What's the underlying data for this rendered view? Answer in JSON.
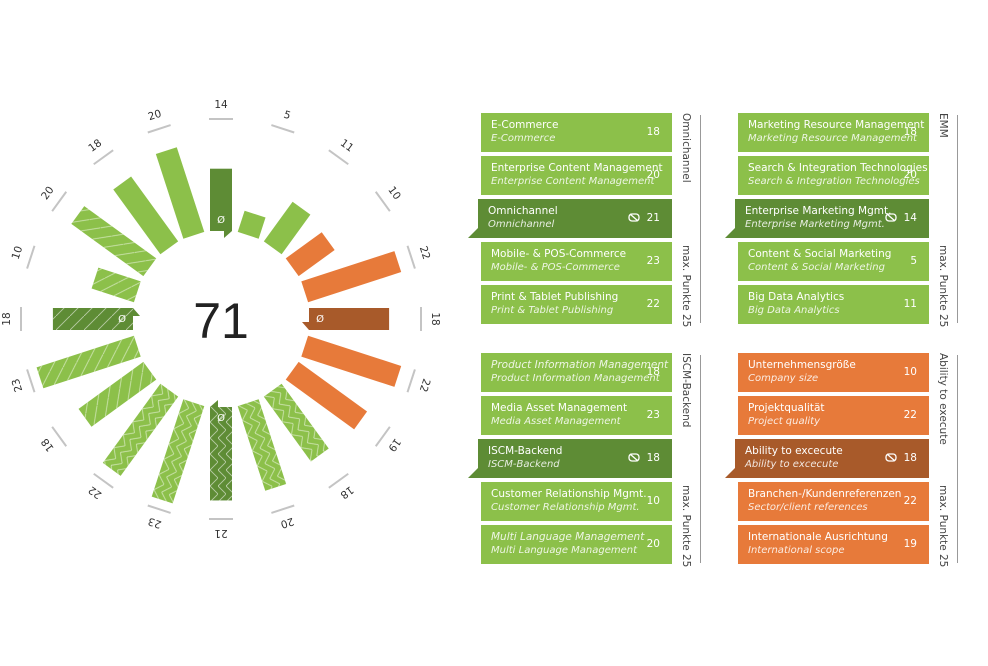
{
  "colors": {
    "green": "#8cc04a",
    "green_dark": "#5e8c35",
    "orange": "#e77a3a",
    "orange_dark": "#a85a2a",
    "tick": "#c4c4c4",
    "label": "#333333"
  },
  "chart_data": {
    "type": "radial_bar",
    "title": "",
    "center_value": "71",
    "max_value": 25,
    "average_marker": "Ø",
    "segments": [
      {
        "angle": 0,
        "value": 14,
        "group": "EMM",
        "label": "Enterprise Marketing Mgmt.",
        "avg": true,
        "pattern": "solid"
      },
      {
        "angle": 18,
        "value": 5,
        "group": "EMM",
        "label": "Content & Social Marketing",
        "pattern": "solid"
      },
      {
        "angle": 36,
        "value": 11,
        "group": "EMM",
        "label": "Big Data Analytics",
        "pattern": "solid"
      },
      {
        "angle": 54,
        "value": 10,
        "group": "Ability to execute",
        "label": "Company size",
        "pattern": "solid"
      },
      {
        "angle": 72,
        "value": 22,
        "group": "Ability to execute",
        "label": "Project quality",
        "pattern": "solid"
      },
      {
        "angle": 90,
        "value": 18,
        "group": "Ability to execute",
        "label": "Ability to excecute",
        "avg": true,
        "pattern": "solid"
      },
      {
        "angle": 108,
        "value": 22,
        "group": "Ability to execute",
        "label": "Sector/client references",
        "pattern": "solid"
      },
      {
        "angle": 126,
        "value": 19,
        "group": "Ability to execute",
        "label": "International scope",
        "pattern": "solid"
      },
      {
        "angle": 144,
        "value": 18,
        "group": "Omnichannel",
        "label": "E-Commerce",
        "pattern": "cross"
      },
      {
        "angle": 162,
        "value": 20,
        "group": "Omnichannel",
        "label": "Enterprise Content Management",
        "pattern": "cross"
      },
      {
        "angle": 180,
        "value": 21,
        "group": "Omnichannel",
        "label": "Omnichannel",
        "avg": true,
        "pattern": "cross"
      },
      {
        "angle": 198,
        "value": 23,
        "group": "Omnichannel",
        "label": "Mobile- & POS-Commerce",
        "pattern": "cross"
      },
      {
        "angle": 216,
        "value": 22,
        "group": "Omnichannel",
        "label": "Print & Tablet Publishing",
        "pattern": "cross"
      },
      {
        "angle": 234,
        "value": 18,
        "group": "ISCM-Backend",
        "label": "Product Information Management",
        "pattern": "diag"
      },
      {
        "angle": 252,
        "value": 23,
        "group": "ISCM-Backend",
        "label": "Media Asset Management",
        "pattern": "diag"
      },
      {
        "angle": 270,
        "value": 18,
        "group": "ISCM-Backend",
        "label": "ISCM-Backend",
        "avg": true,
        "pattern": "diag"
      },
      {
        "angle": 288,
        "value": 10,
        "group": "ISCM-Backend",
        "label": "Customer Relationship Mgmt.",
        "pattern": "diag"
      },
      {
        "angle": 306,
        "value": 20,
        "group": "ISCM-Backend",
        "label": "Multi Language Management",
        "pattern": "diag"
      },
      {
        "angle": 324,
        "value": 18,
        "group": "EMM",
        "label": "Marketing Resource Management",
        "pattern": "solid"
      },
      {
        "angle": 342,
        "value": 20,
        "group": "EMM",
        "label": "Search & Integration Technologies",
        "pattern": "solid"
      }
    ],
    "legend_position": "right",
    "grid": false
  },
  "panels": [
    {
      "id": "omnichannel",
      "group_label": "Omnichannel",
      "max_label": "max. Punkte 25",
      "theme": "green",
      "items": [
        {
          "title": "E-Commerce",
          "subtitle": "E-Commerce",
          "value": "18"
        },
        {
          "title": "Enterprise Content Management",
          "subtitle": "Enterprise Content Management",
          "value": "20"
        },
        {
          "title": "Omnichannel",
          "subtitle": "Omnichannel",
          "value": "21",
          "avg": true
        },
        {
          "title": "Mobile- & POS-Commerce",
          "subtitle": "Mobile- & POS-Commerce",
          "value": "23"
        },
        {
          "title": "Print & Tablet Publishing",
          "subtitle": "Print & Tablet Publishing",
          "value": "22"
        }
      ]
    },
    {
      "id": "emm",
      "group_label": "EMM",
      "max_label": "max. Punkte 25",
      "theme": "green",
      "items": [
        {
          "title": "Marketing Resource Management",
          "subtitle": "Marketing Resource Management",
          "value": "18"
        },
        {
          "title": "Search & Integration Technologies",
          "subtitle": "Search & Integration Technologies",
          "value": "20"
        },
        {
          "title": "Enterprise Marketing Mgmt.",
          "subtitle": "Enterprise Marketing Mgmt.",
          "value": "14",
          "avg": true
        },
        {
          "title": "Content & Social Marketing",
          "subtitle": "Content & Social Marketing",
          "value": "5"
        },
        {
          "title": "Big Data Analytics",
          "subtitle": "Big Data Analytics",
          "value": "11"
        }
      ]
    },
    {
      "id": "iscm",
      "group_label": "ISCM-Backend",
      "max_label": "max. Punkte 25",
      "theme": "green",
      "items": [
        {
          "title": "Product Information Management",
          "subtitle": "Product Information Management",
          "value": "18",
          "italic_title": true
        },
        {
          "title": "Media Asset Management",
          "subtitle": "Media Asset Management",
          "value": "23"
        },
        {
          "title": "ISCM-Backend",
          "subtitle": "ISCM-Backend",
          "value": "18",
          "avg": true
        },
        {
          "title": "Customer Relationship Mgmt.",
          "subtitle": "Customer Relationship Mgmt.",
          "value": "10"
        },
        {
          "title": "Multi Language Management",
          "subtitle": "Multi Language Management",
          "value": "20",
          "italic_title": true
        }
      ]
    },
    {
      "id": "ability",
      "group_label": "Ability to execute",
      "max_label": "max. Punkte 25",
      "theme": "orange",
      "items": [
        {
          "title": "Unternehmensgröße",
          "subtitle": "Company size",
          "value": "10"
        },
        {
          "title": "Projektqualität",
          "subtitle": "Project quality",
          "value": "22"
        },
        {
          "title": "Ability to excecute",
          "subtitle": "Ability to excecute",
          "value": "18",
          "avg": true
        },
        {
          "title": "Branchen-/Kundenreferenzen",
          "subtitle": "Sector/client references",
          "value": "22"
        },
        {
          "title": "Internationale Ausrichtung",
          "subtitle": "International scope",
          "value": "19"
        }
      ]
    }
  ]
}
